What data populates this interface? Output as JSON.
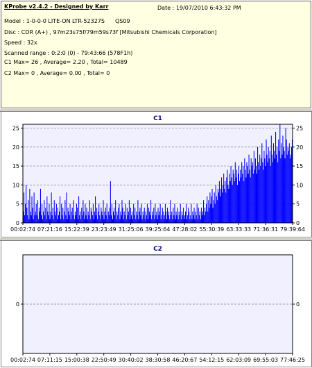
{
  "info": {
    "title": "KProbe v2.4.2 - Designed by Karr",
    "date": "Date : 19/07/2010 6:43:32 PM",
    "model": "Model : 1-0-0-0 LITE-ON LTR-52327S",
    "model_firmware": "QS09",
    "disc": "Disc : CDR (A+) , 97m23s75f/79m59s73f [Mitsubishi Chemicals Corporation]",
    "speed": "Speed : 32x",
    "scanned_range": "Scanned range : 0:2:0 (0) - 79:43:66 (578F1h)",
    "c1_summary": "C1 Max= 26 , Average= 2.20 , Total= 10489",
    "c2_summary": "C2 Max= 0 , Average= 0.00 , Total= 0"
  },
  "chart_data": [
    {
      "type": "bar",
      "title": "C1",
      "xlabel": "",
      "ylabel": "",
      "ylim": [
        0,
        26
      ],
      "yticks": [
        0,
        5,
        10,
        15,
        20,
        25
      ],
      "xticks": [
        "00:02:74",
        "07:21:16",
        "15:22:39",
        "23:23:49",
        "31:25:06",
        "39:25:64",
        "47:28:02",
        "55:30:39",
        "63:33:33",
        "71:36:31",
        "79:39:64"
      ],
      "grid": true,
      "bar_color": "#0000ff",
      "series": [
        {
          "values": [
            3,
            8,
            2,
            5,
            10,
            4,
            2,
            6,
            1,
            9,
            3,
            2,
            7,
            4,
            1,
            8,
            2,
            3,
            5,
            2,
            6,
            1,
            4,
            3,
            9,
            2,
            5,
            1,
            3,
            6,
            2,
            4,
            1,
            7,
            3,
            2,
            5,
            1,
            3,
            8,
            2,
            4,
            1,
            6,
            3,
            2,
            5,
            1,
            4,
            2,
            3,
            7,
            1,
            5,
            2,
            4,
            1,
            3,
            6,
            2,
            8,
            1,
            4,
            3,
            2,
            5,
            1,
            3,
            4,
            2,
            6,
            1,
            3,
            2,
            5,
            4,
            1,
            7,
            2,
            3,
            1,
            4,
            2,
            6,
            3,
            1,
            5,
            2,
            4,
            1,
            3,
            2,
            6,
            1,
            4,
            3,
            2,
            5,
            1,
            3,
            7,
            2,
            4,
            1,
            3,
            5,
            2,
            1,
            4,
            3,
            2,
            6,
            1,
            3,
            4,
            2,
            5,
            1,
            3,
            2,
            4,
            11,
            2,
            5,
            1,
            3,
            4,
            2,
            6,
            1,
            3,
            2,
            4,
            5,
            1,
            3,
            2,
            6,
            4,
            1,
            3,
            2,
            5,
            1,
            4,
            2,
            3,
            6,
            1,
            4,
            2,
            3,
            1,
            5,
            2,
            4,
            1,
            3,
            2,
            6,
            1,
            3,
            4,
            2,
            5,
            1,
            3,
            2,
            4,
            1,
            3,
            2,
            5,
            1,
            4,
            3,
            2,
            6,
            1,
            3,
            2,
            4,
            1,
            5,
            2,
            3,
            1,
            4,
            2,
            3,
            5,
            1,
            2,
            4,
            3,
            1,
            2,
            5,
            3,
            1,
            4,
            2,
            3,
            1,
            6,
            2,
            3,
            1,
            4,
            2,
            5,
            1,
            3,
            2,
            4,
            1,
            3,
            2,
            5,
            1,
            3,
            2,
            4,
            1,
            2,
            3,
            5,
            1,
            2,
            4,
            3,
            1,
            2,
            5,
            1,
            3,
            2,
            4,
            1,
            3,
            2,
            5,
            1,
            4,
            2,
            3,
            1,
            4,
            2,
            3,
            6,
            2,
            4,
            3,
            5,
            7,
            3,
            6,
            4,
            8,
            5,
            7,
            9,
            4,
            6,
            8,
            5,
            10,
            7,
            6,
            9,
            8,
            11,
            7,
            9,
            12,
            8,
            10,
            13,
            9,
            11,
            8,
            12,
            14,
            10,
            9,
            13,
            11,
            15,
            12,
            10,
            14,
            13,
            11,
            16,
            12,
            14,
            10,
            13,
            15,
            11,
            14,
            12,
            16,
            13,
            15,
            11,
            17,
            14,
            12,
            16,
            15,
            13,
            18,
            14,
            12,
            17,
            15,
            16,
            13,
            19,
            14,
            17,
            15,
            13,
            20,
            16,
            14,
            18,
            15,
            17,
            21,
            16,
            14,
            19,
            17,
            15,
            22,
            18,
            16,
            20,
            17,
            19,
            15,
            23,
            18,
            16,
            21,
            19,
            17,
            24,
            18,
            20,
            16,
            22,
            19,
            26,
            17,
            21,
            18,
            23,
            20,
            19,
            17,
            25,
            22,
            18,
            20,
            19,
            21,
            17,
            18,
            20,
            22
          ]
        }
      ]
    },
    {
      "type": "bar",
      "title": "C2",
      "xlabel": "",
      "ylabel": "",
      "ylim": [
        -1,
        1
      ],
      "yticks": [
        0
      ],
      "xticks": [
        "00:02:74",
        "07:11:15",
        "15:00:38",
        "22:50:49",
        "30:40:02",
        "38:30:58",
        "46:20:67",
        "54:12:15",
        "62:03:09",
        "69:55:03",
        "77:46:25"
      ],
      "grid": true,
      "bar_color": "#0000ff",
      "series": [
        {
          "values": []
        }
      ]
    }
  ]
}
